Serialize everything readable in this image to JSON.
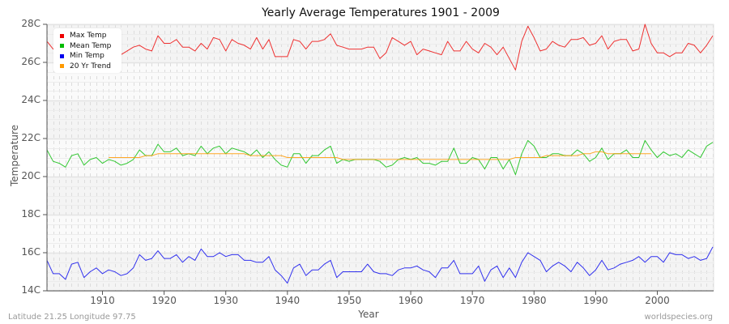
{
  "title": "Yearly Average Temperatures 1901 - 2009",
  "footer": {
    "location": "Latitude 21.25 Longitude 97.75",
    "source": "worldspecies.org"
  },
  "axes": {
    "xlabel": "Year",
    "ylabel": "Temperature",
    "y_ticks": [
      "28C",
      "26C",
      "24C",
      "22C",
      "20C",
      "18C",
      "16C",
      "14C"
    ],
    "x_ticks": [
      "1910",
      "1920",
      "1930",
      "1940",
      "1950",
      "1960",
      "1970",
      "1980",
      "1990",
      "2000"
    ]
  },
  "legend": [
    {
      "label": "Max Temp",
      "color": "#ee0000"
    },
    {
      "label": "Mean Temp",
      "color": "#00bb00"
    },
    {
      "label": "Min Temp",
      "color": "#0000ee"
    },
    {
      "label": "20 Yr Trend",
      "color": "#ff9900"
    }
  ],
  "chart_data": {
    "type": "line",
    "title": "Yearly Average Temperatures 1901 - 2009",
    "xlabel": "Year",
    "ylabel": "Temperature",
    "ylim": [
      14,
      28
    ],
    "xlim": [
      1901,
      2009
    ],
    "grid": true,
    "legend_position": "top-left",
    "x_start": 1901,
    "series": [
      {
        "name": "Max Temp",
        "color": "#ee0000",
        "start": 1901,
        "values": [
          27.1,
          26.7,
          26.8,
          26.5,
          26.2,
          26.0,
          26.0,
          26.1,
          26.3,
          26.2,
          26.0,
          26.1,
          26.4,
          26.6,
          26.8,
          26.9,
          26.7,
          26.6,
          27.4,
          27.0,
          27.0,
          27.2,
          26.8,
          26.8,
          26.6,
          27.0,
          26.7,
          27.3,
          27.2,
          26.6,
          27.2,
          27.0,
          26.9,
          26.7,
          27.3,
          26.7,
          27.2,
          26.3,
          26.3,
          26.3,
          27.2,
          27.1,
          26.7,
          27.1,
          27.1,
          27.2,
          27.5,
          26.9,
          26.8,
          26.7,
          26.7,
          26.7,
          26.8,
          26.8,
          26.2,
          26.5,
          27.3,
          27.1,
          26.9,
          27.1,
          26.4,
          26.7,
          26.6,
          26.5,
          26.4,
          27.1,
          26.6,
          26.6,
          27.1,
          26.7,
          26.5,
          27.0,
          26.8,
          26.4,
          26.8,
          26.2,
          25.6,
          27.1,
          27.9,
          27.3,
          26.6,
          26.7,
          27.1,
          26.9,
          26.8,
          27.2,
          27.2,
          27.3,
          26.9,
          27.0,
          27.4,
          26.7,
          27.1,
          27.2,
          27.2,
          26.6,
          26.7,
          28.0,
          27.0,
          26.5,
          26.5,
          26.3,
          26.5,
          26.5,
          27.0,
          26.9,
          26.5,
          26.9,
          27.4
        ]
      },
      {
        "name": "Mean Temp",
        "color": "#00bb00",
        "start": 1901,
        "values": [
          21.4,
          20.8,
          20.7,
          20.5,
          21.1,
          21.2,
          20.6,
          20.9,
          21.0,
          20.7,
          20.9,
          20.8,
          20.6,
          20.7,
          20.9,
          21.4,
          21.1,
          21.1,
          21.7,
          21.3,
          21.3,
          21.5,
          21.1,
          21.2,
          21.1,
          21.6,
          21.2,
          21.5,
          21.6,
          21.2,
          21.5,
          21.4,
          21.3,
          21.1,
          21.4,
          21.0,
          21.3,
          20.9,
          20.6,
          20.5,
          21.2,
          21.2,
          20.7,
          21.1,
          21.1,
          21.4,
          21.6,
          20.7,
          20.9,
          20.8,
          20.9,
          20.9,
          20.9,
          20.9,
          20.8,
          20.5,
          20.6,
          20.9,
          21.0,
          20.9,
          21.0,
          20.7,
          20.7,
          20.6,
          20.8,
          20.8,
          21.5,
          20.7,
          20.7,
          21.0,
          20.9,
          20.4,
          21.0,
          21.0,
          20.4,
          20.9,
          20.1,
          21.2,
          21.9,
          21.6,
          21.0,
          21.0,
          21.2,
          21.2,
          21.1,
          21.1,
          21.4,
          21.2,
          20.8,
          21.0,
          21.5,
          20.9,
          21.2,
          21.2,
          21.4,
          21.0,
          21.0,
          21.9,
          21.4,
          21.0,
          21.3,
          21.1,
          21.2,
          21.0,
          21.4,
          21.2,
          21.0,
          21.6,
          21.8
        ]
      },
      {
        "name": "Min Temp",
        "color": "#0000ee",
        "start": 1901,
        "values": [
          15.6,
          14.9,
          14.9,
          14.6,
          15.4,
          15.5,
          14.7,
          15.0,
          15.2,
          14.9,
          15.1,
          15.0,
          14.8,
          14.9,
          15.2,
          15.9,
          15.6,
          15.7,
          16.1,
          15.7,
          15.7,
          15.9,
          15.5,
          15.8,
          15.6,
          16.2,
          15.8,
          15.8,
          16.0,
          15.8,
          15.9,
          15.9,
          15.6,
          15.6,
          15.5,
          15.5,
          15.8,
          15.1,
          14.8,
          14.4,
          15.2,
          15.4,
          14.8,
          15.1,
          15.1,
          15.4,
          15.6,
          14.7,
          15.0,
          15.0,
          15.0,
          15.0,
          15.4,
          15.0,
          14.9,
          14.9,
          14.8,
          15.1,
          15.2,
          15.2,
          15.3,
          15.1,
          15.0,
          14.7,
          15.2,
          15.2,
          15.6,
          14.9,
          14.9,
          14.9,
          15.3,
          14.5,
          15.1,
          15.3,
          14.7,
          15.2,
          14.7,
          15.5,
          16.0,
          15.8,
          15.6,
          15.0,
          15.3,
          15.5,
          15.3,
          15.0,
          15.5,
          15.2,
          14.8,
          15.1,
          15.6,
          15.1,
          15.2,
          15.4,
          15.5,
          15.6,
          15.8,
          15.5,
          15.8,
          15.8,
          15.5,
          16.0,
          15.9,
          15.9,
          15.7,
          15.8,
          15.6,
          15.7,
          16.3
        ]
      },
      {
        "name": "20 Yr Trend",
        "color": "#ff9900",
        "start": 1911,
        "values": [
          21.0,
          21.0,
          21.0,
          21.0,
          21.0,
          21.0,
          21.1,
          21.1,
          21.2,
          21.2,
          21.2,
          21.2,
          21.2,
          21.2,
          21.2,
          21.2,
          21.2,
          21.2,
          21.2,
          21.2,
          21.2,
          21.2,
          21.2,
          21.1,
          21.1,
          21.1,
          21.1,
          21.1,
          21.1,
          21.0,
          21.0,
          21.0,
          21.0,
          21.0,
          21.0,
          21.0,
          21.0,
          21.0,
          20.9,
          20.9,
          20.9,
          20.9,
          20.9,
          20.9,
          20.9,
          20.9,
          20.9,
          20.9,
          20.9,
          20.9,
          20.9,
          20.9,
          20.9,
          20.9,
          20.9,
          20.9,
          20.9,
          20.9,
          20.9,
          20.9,
          20.9,
          20.9,
          20.9,
          20.9,
          20.9,
          20.9,
          21.0,
          21.0,
          21.0,
          21.0,
          21.0,
          21.1,
          21.1,
          21.1,
          21.1,
          21.1,
          21.1,
          21.2,
          21.2,
          21.3,
          21.3,
          21.2,
          21.2,
          21.2,
          21.2,
          21.2,
          21.2,
          21.2,
          21.2
        ]
      }
    ]
  }
}
